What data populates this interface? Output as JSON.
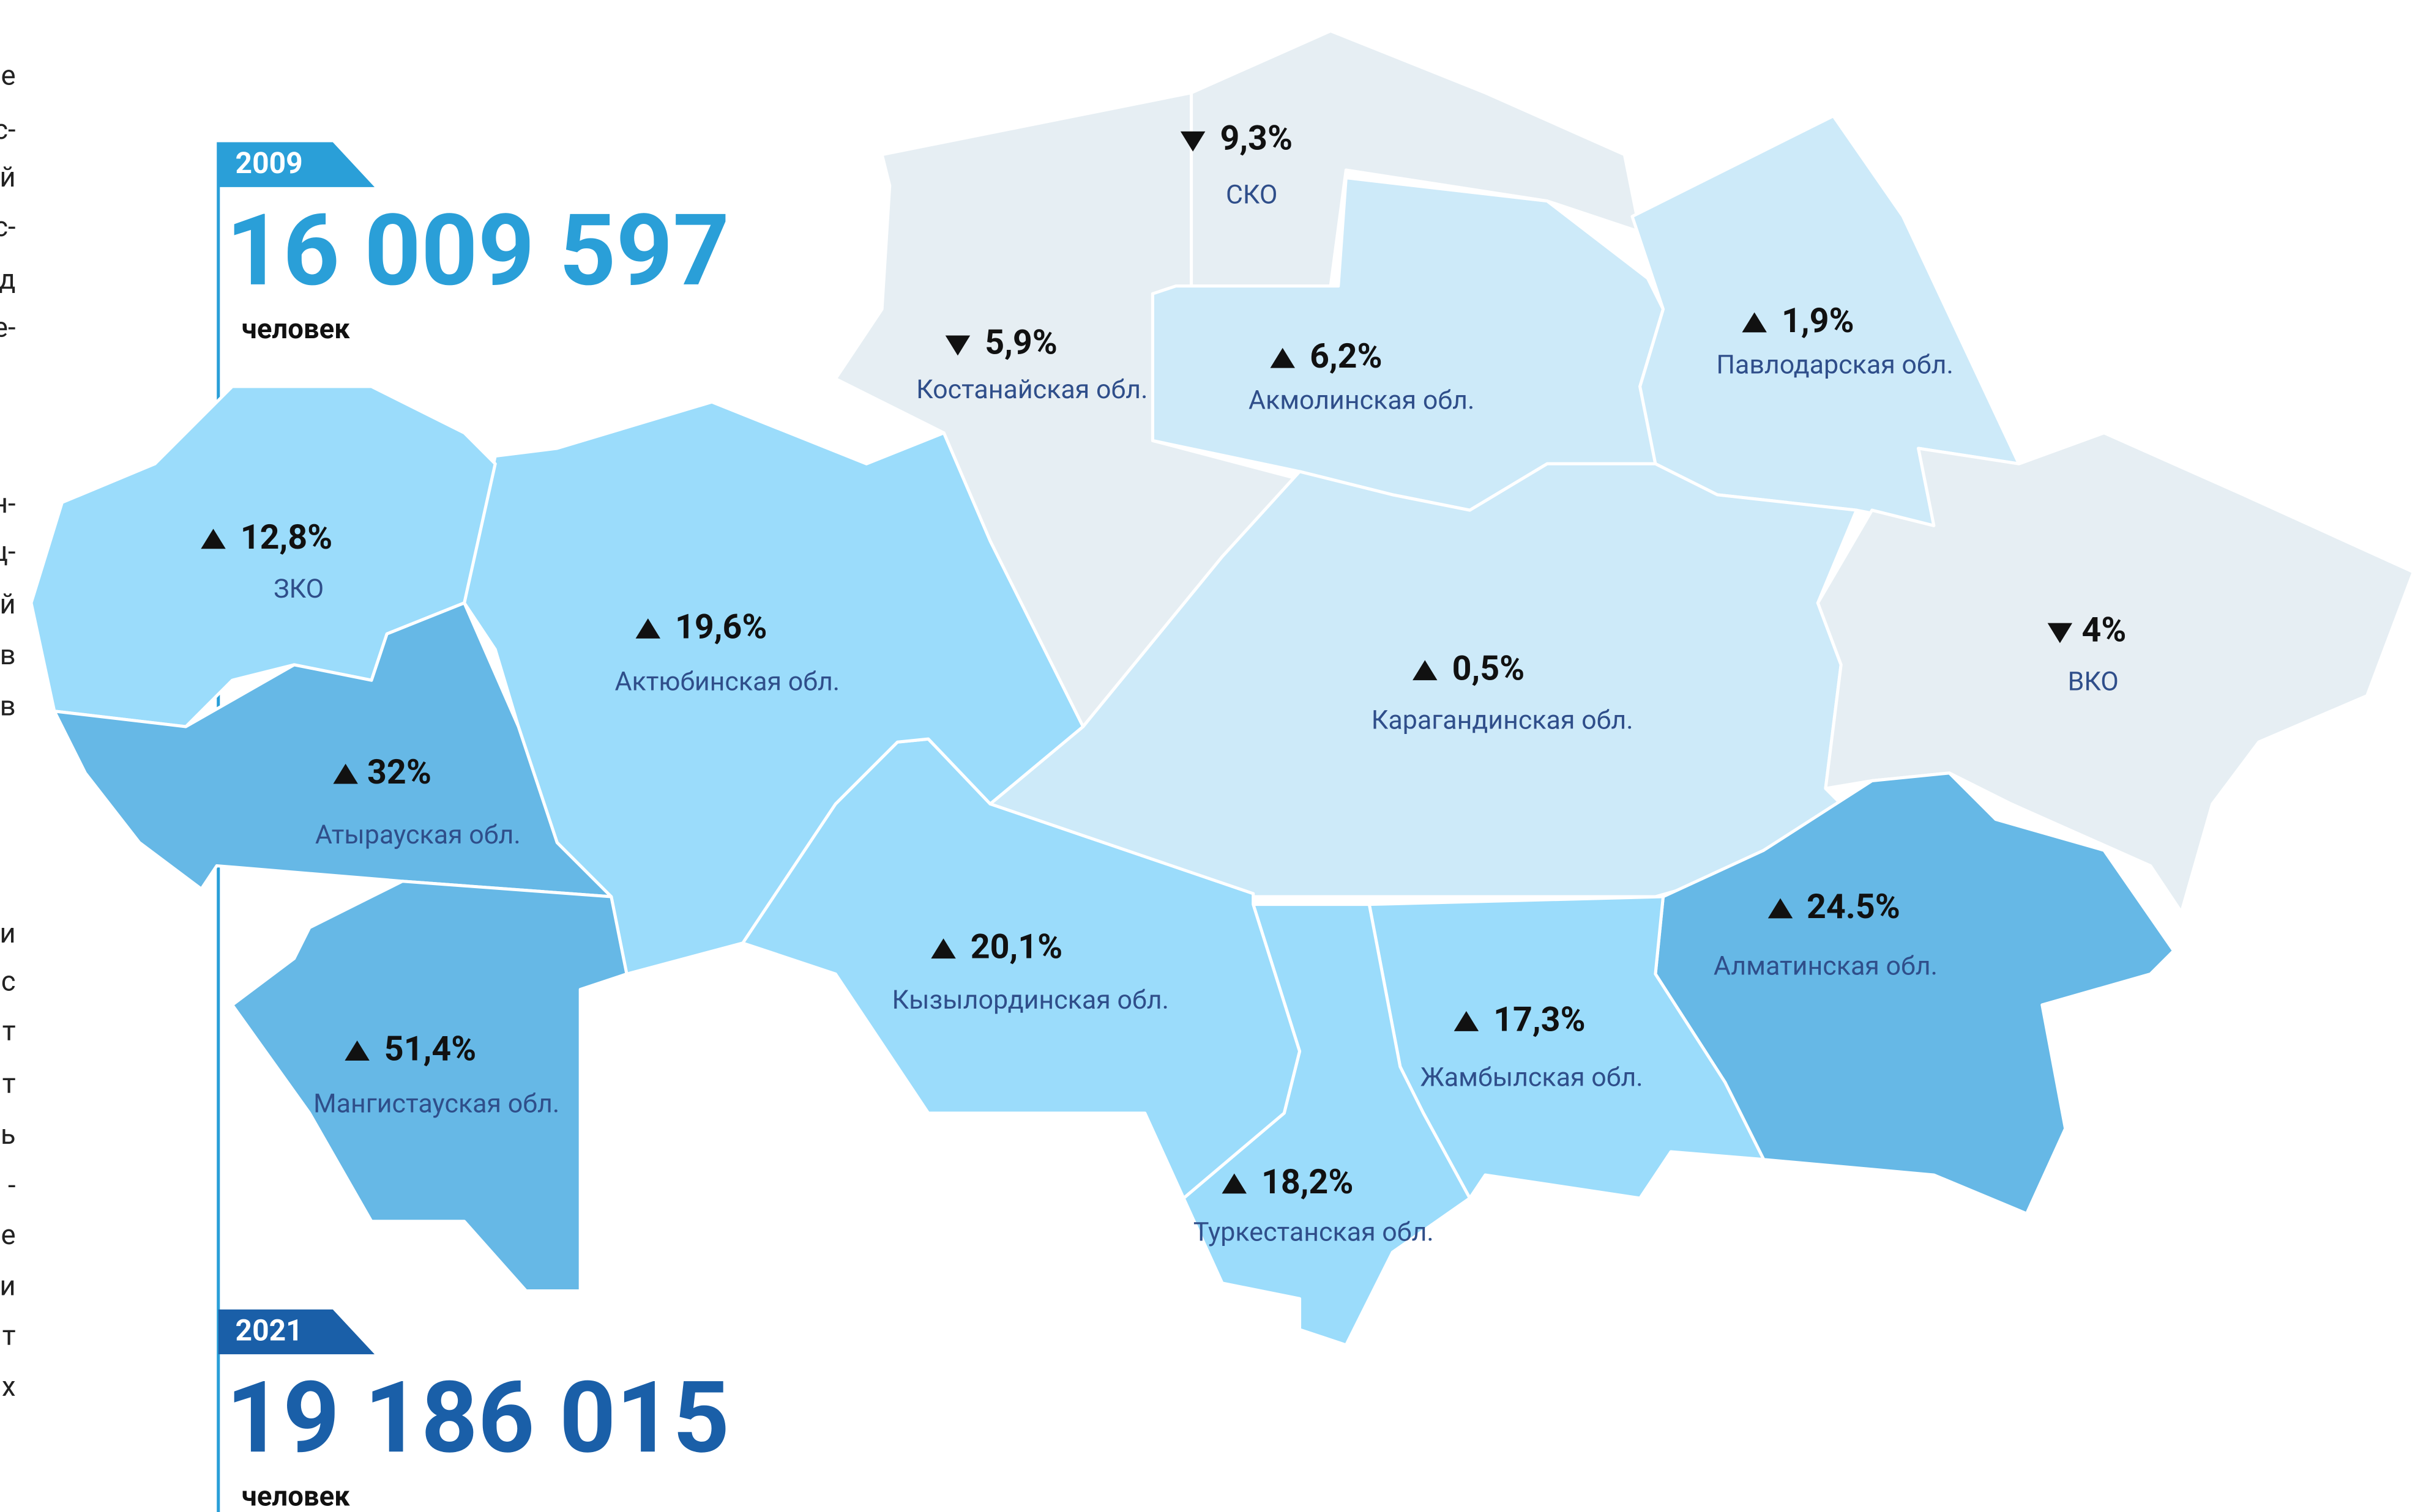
{
  "left_text_fragments": [
    "е",
    "с-",
    "й",
    "с-",
    "д",
    "е-",
    "н-",
    "ц-",
    "й",
    "в",
    "в",
    "и",
    "с",
    "т",
    "т",
    "ь",
    "-",
    "е",
    "и",
    "т",
    "х"
  ],
  "totals": [
    {
      "year": "2009",
      "value": "16 009 597",
      "unit": "человек",
      "color": "#2a9fd8"
    },
    {
      "year": "2021",
      "value": "19 186 015",
      "unit": "человек",
      "color": "#1a5fa8"
    }
  ],
  "regions": [
    {
      "name": "Костанайская обл.",
      "change": "5,9%",
      "trend": "down",
      "color": "#e6eef3"
    },
    {
      "name": "СКО",
      "change": "9,3%",
      "trend": "down",
      "color": "#e6eef3"
    },
    {
      "name": "Акмолинская обл.",
      "change": "6,2%",
      "trend": "up",
      "color": "#cdeaf9"
    },
    {
      "name": "Павлодарская обл.",
      "change": "1,9%",
      "trend": "up",
      "color": "#cdeaf9"
    },
    {
      "name": "Карагандинская обл.",
      "change": "0,5%",
      "trend": "up",
      "color": "#cdeaf9"
    },
    {
      "name": "ВКО",
      "change": "4%",
      "trend": "down",
      "color": "#e6eef3"
    },
    {
      "name": "Алматинская обл.",
      "change": "24.5%",
      "trend": "up",
      "color": "#66b8e6"
    },
    {
      "name": "Жамбылская обл.",
      "change": "17,3%",
      "trend": "up",
      "color": "#9bdcfb"
    },
    {
      "name": "Туркестанская обл.",
      "change": "18,2%",
      "trend": "up",
      "color": "#9bdcfb"
    },
    {
      "name": "Кызылординская обл.",
      "change": "20,1%",
      "trend": "up",
      "color": "#9bdcfb"
    },
    {
      "name": "Актюбинская обл.",
      "change": "19,6%",
      "trend": "up",
      "color": "#9bdcfb"
    },
    {
      "name": "ЗКО",
      "change": "12,8%",
      "trend": "up",
      "color": "#9bdcfb"
    },
    {
      "name": "Атырауская обл.",
      "change": "32%",
      "trend": "up",
      "color": "#66b8e6"
    },
    {
      "name": "Мангистауская обл.",
      "change": "51,4%",
      "trend": "up",
      "color": "#66b8e6"
    }
  ]
}
